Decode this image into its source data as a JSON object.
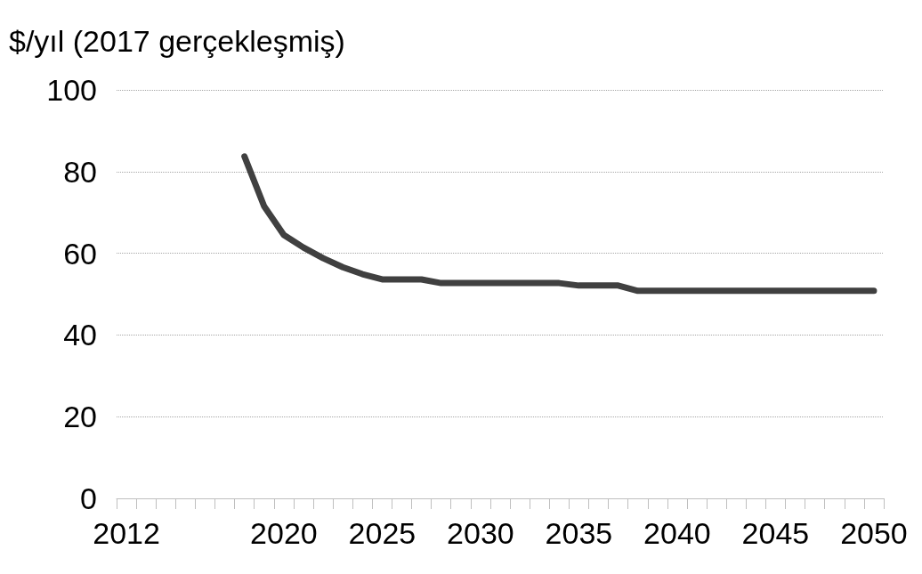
{
  "chart_data": {
    "type": "line",
    "ylabel": "$/yıl (2017 gerçekleşmiş)",
    "categories": [
      "2012",
      null,
      null,
      null,
      null,
      null,
      null,
      null,
      "2020",
      null,
      null,
      null,
      null,
      "2025",
      null,
      null,
      null,
      null,
      "2030",
      null,
      null,
      null,
      null,
      "2035",
      null,
      null,
      null,
      null,
      "2040",
      null,
      null,
      null,
      null,
      "2045",
      null,
      null,
      null,
      null,
      "2050"
    ],
    "series": [
      {
        "color": "#404040",
        "values": [
          null,
          null,
          null,
          null,
          null,
          null,
          83.7,
          71.5,
          64.5,
          61.4,
          58.8,
          56.6,
          54.9,
          53.6,
          53.6,
          53.6,
          52.7,
          52.7,
          52.7,
          52.7,
          52.7,
          52.7,
          52.7,
          52.1,
          52.1,
          52.1,
          50.8,
          50.8,
          50.8,
          50.8,
          50.8,
          50.8,
          50.8,
          50.8,
          50.8,
          50.8,
          50.8,
          50.8,
          50.8
        ]
      }
    ],
    "ylim": [
      0,
      100
    ],
    "yticks": [
      0,
      20,
      40,
      60,
      80,
      100
    ],
    "grid": "y",
    "marker": "none",
    "line_style": "solid"
  }
}
